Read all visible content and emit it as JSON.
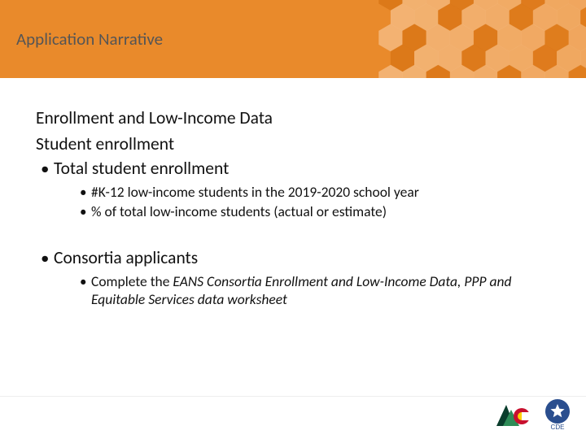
{
  "header": {
    "title": "Application Narrative",
    "background_color": "#e98a2b",
    "title_color": "#555555",
    "hex_colors": {
      "light": "#f4b97f",
      "dark": "#d97516"
    }
  },
  "content": {
    "section_heading": "Enrollment and Low-Income Data",
    "sub_heading": "Student enrollment",
    "bullets": [
      {
        "text": "Total student enrollment",
        "children": [
          "#K-12 low-income students in the 2019-2020 school year",
          "% of total low-income students (actual or estimate)"
        ]
      },
      {
        "text": "Consortia applicants",
        "children_rich": [
          {
            "parts": [
              {
                "text": "Complete the ",
                "italic": false
              },
              {
                "text": "EANS Consortia Enrollment and Low-Income Data, PPP and Equitable Services data worksheet",
                "italic": true
              }
            ]
          }
        ]
      }
    ]
  },
  "logos": {
    "colorado": {
      "triangle_dark": "#0a3d2c",
      "triangle_light": "#2e8b57",
      "c_red": "#c8102e",
      "c_gold": "#ffd100",
      "c_blue": "#002868"
    },
    "cde": {
      "circle_blue": "#2a4e8e",
      "star_white": "#ffffff",
      "text": "CDE"
    }
  },
  "typography": {
    "title_fontsize": 21,
    "l1_fontsize": 21.5,
    "l2_fontsize": 17.5
  }
}
